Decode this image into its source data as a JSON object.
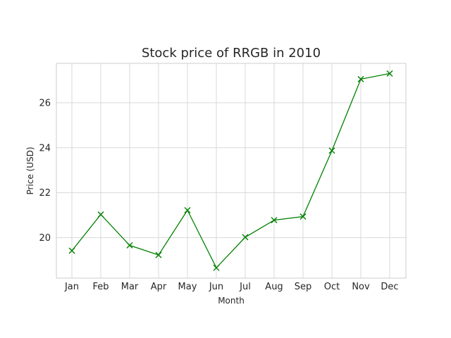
{
  "chart_data": {
    "type": "line",
    "title": "Stock price of RRGB in 2010",
    "xlabel": "Month",
    "ylabel": "Price (USD)",
    "categories": [
      "Jan",
      "Feb",
      "Mar",
      "Apr",
      "May",
      "Jun",
      "Jul",
      "Aug",
      "Sep",
      "Oct",
      "Nov",
      "Dec"
    ],
    "series": [
      {
        "values": [
          19.42,
          21.03,
          19.66,
          19.23,
          21.22,
          18.66,
          20.02,
          20.78,
          20.94,
          23.87,
          27.05,
          27.3
        ],
        "color": "#008000",
        "marker": "x"
      }
    ],
    "yticks": [
      20,
      22,
      24,
      26
    ],
    "ylim": [
      18.2,
      27.75
    ],
    "grid": true
  }
}
